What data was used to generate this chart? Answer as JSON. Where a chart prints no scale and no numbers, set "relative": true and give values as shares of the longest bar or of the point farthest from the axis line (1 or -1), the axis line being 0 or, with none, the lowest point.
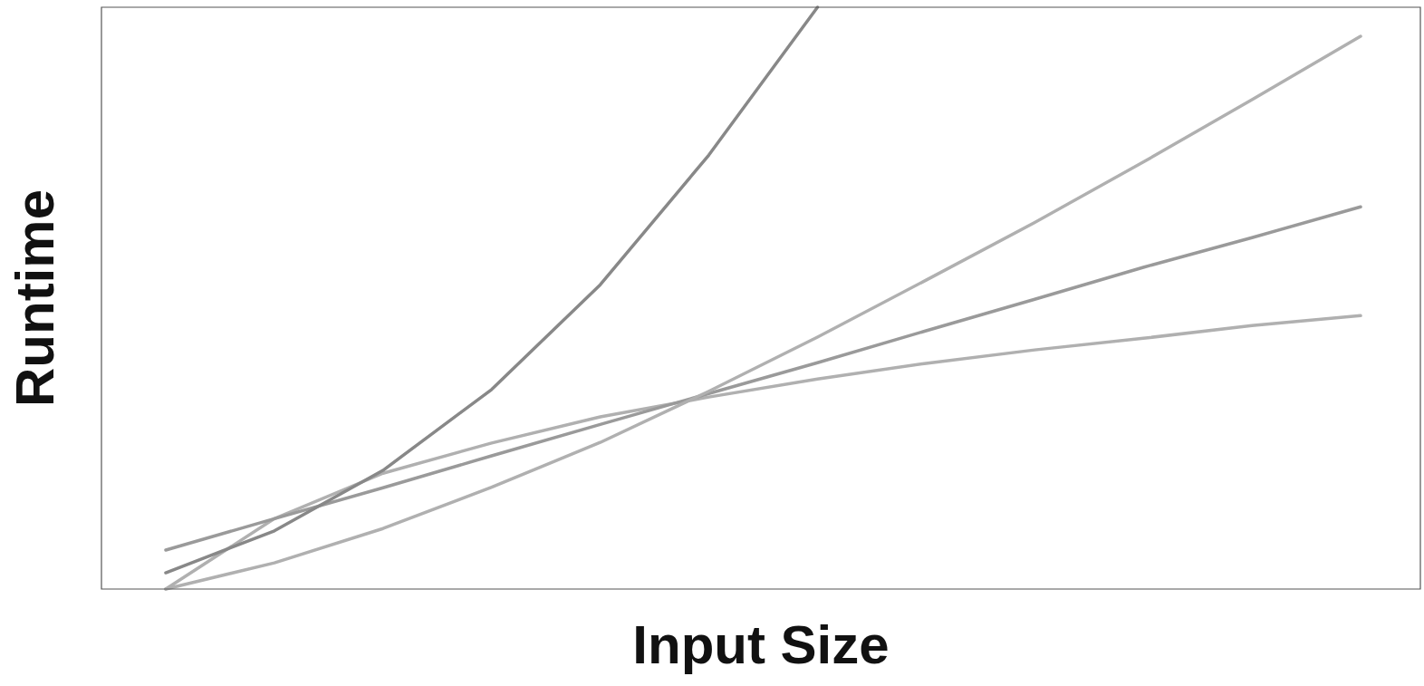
{
  "chart_data": {
    "type": "line",
    "xlabel": "Input Size",
    "ylabel": "Runtime",
    "relative": true,
    "categories": [
      null,
      null,
      null,
      null,
      null,
      null,
      null,
      null,
      null,
      null,
      null,
      null
    ],
    "series": [
      {
        "color": "#888888",
        "values": [
          0.028,
          0.1,
          0.204,
          0.343,
          0.523,
          0.746,
          1,
          null,
          null,
          null,
          null,
          null
        ]
      },
      {
        "color": "#b0b0b0",
        "values": [
          0,
          0.045,
          0.104,
          0.175,
          0.252,
          0.34,
          0.433,
          0.531,
          0.63,
          0.734,
          0.841,
          0.95
        ]
      },
      {
        "color": "#9a9a9a",
        "values": [
          0.067,
          0.121,
          0.174,
          0.229,
          0.283,
          0.336,
          0.389,
          0.444,
          0.498,
          0.553,
          0.604,
          0.657
        ]
      },
      {
        "color": "#b0b0b0",
        "values": [
          0,
          0.121,
          0.199,
          0.251,
          0.296,
          0.33,
          0.361,
          0.388,
          0.411,
          0.431,
          0.453,
          0.47
        ]
      }
    ]
  }
}
